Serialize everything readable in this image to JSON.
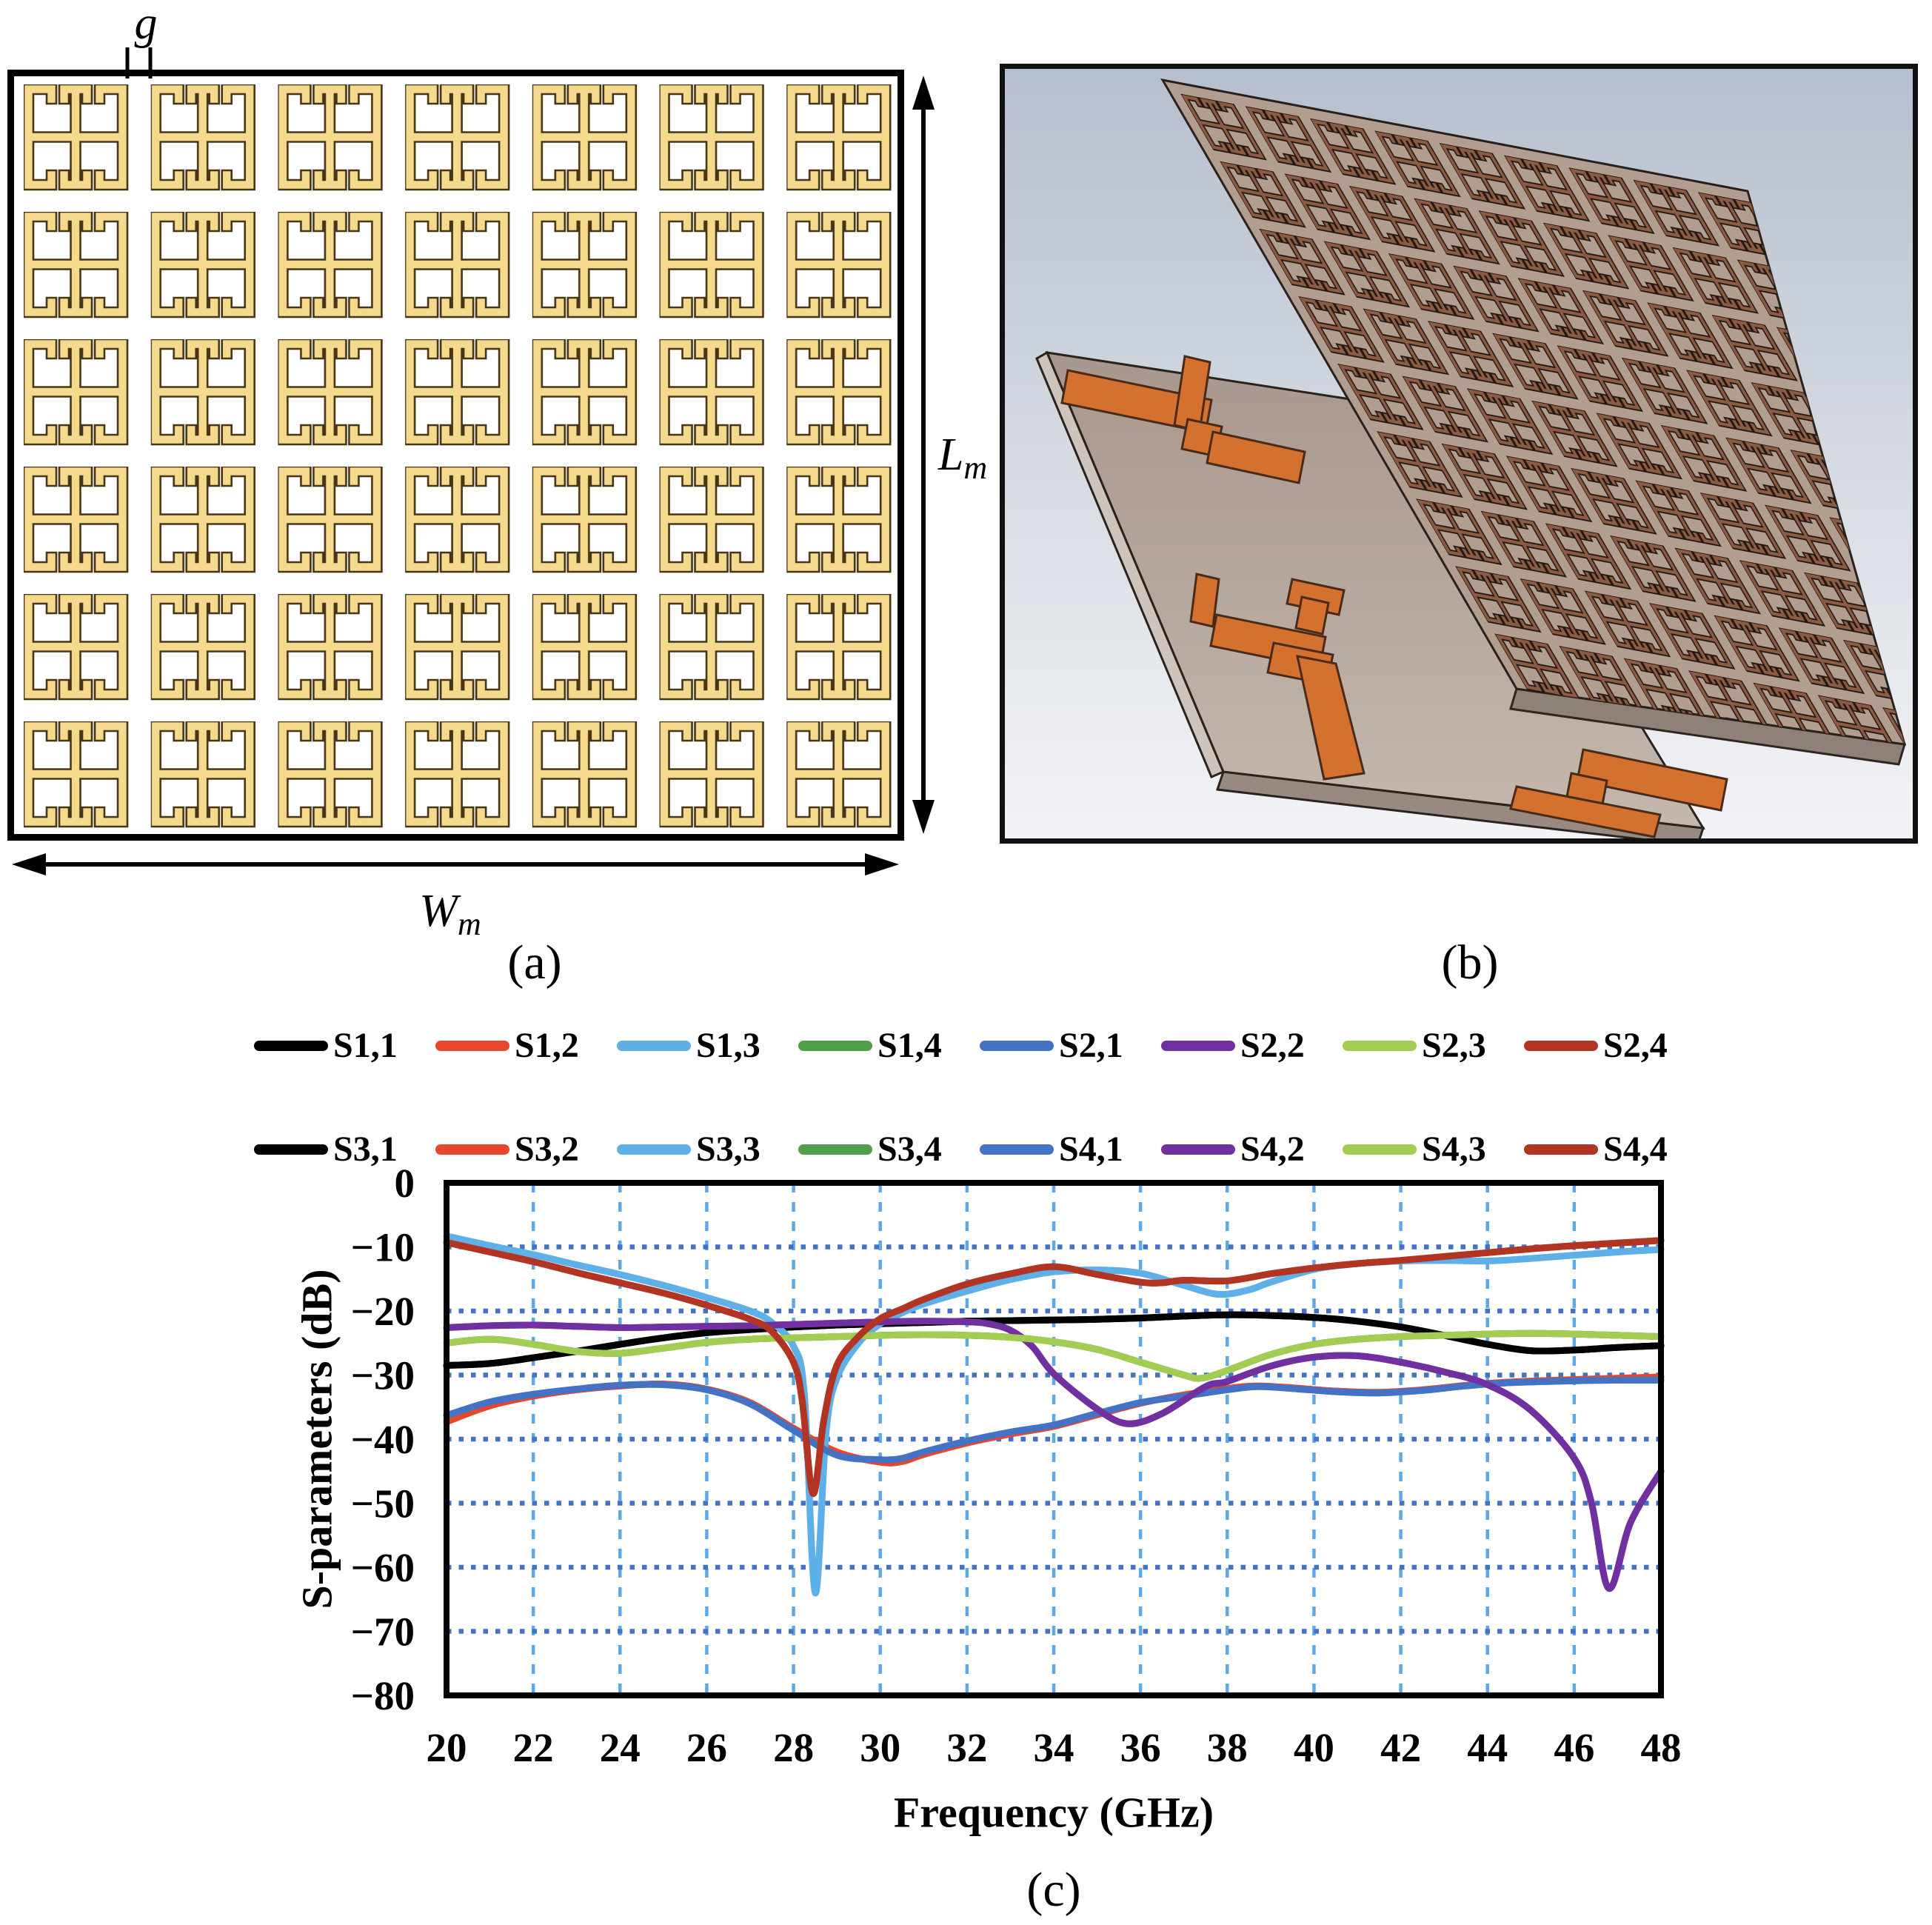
{
  "figure": {
    "panel_a": {
      "label": "(a)",
      "gap_label": "g",
      "width_label": "W",
      "width_sub": "m",
      "height_label": "L",
      "height_sub": "m",
      "grid": {
        "cols": 7,
        "rows": 6
      },
      "cell_fill": "#f5d98c",
      "cell_outline": "#463517",
      "border_color": "#000000",
      "background": "#ffffff"
    },
    "panel_b": {
      "label": "(b)",
      "description": "3D model: metasurface layer above feed-network board",
      "background_top": "#b6bfce",
      "background_bottom": "#eef0f4",
      "metasurface_board_color": "#b29d91",
      "metasurface_cell_color": "#8d5b44",
      "feed_board_color": "#b5a59a",
      "feed_trace_color": "#d4712f",
      "edge_color": "#958579",
      "border_color": "#111111"
    },
    "panel_c": {
      "label": "(c)"
    }
  },
  "chart_data": {
    "type": "line",
    "title": "",
    "xlabel": "Frequency (GHz)",
    "ylabel": "S-parameters (dB)",
    "xlim": [
      20,
      48
    ],
    "ylim": [
      -80,
      0
    ],
    "xticks": [
      20,
      22,
      24,
      26,
      28,
      30,
      32,
      34,
      36,
      38,
      40,
      42,
      44,
      46,
      48
    ],
    "yticks": [
      0,
      -10,
      -20,
      -30,
      -40,
      -50,
      -60,
      -70,
      -80
    ],
    "grid": {
      "vertical_style": "dashed",
      "horizontal_style": "dotted",
      "vertical_color": "#5fa8e8",
      "horizontal_color": "#4472c4"
    },
    "legend_position": "top",
    "axis_color": "#000000",
    "series": [
      {
        "name": "S1,1",
        "color": "#000000",
        "x": [
          20,
          21,
          22,
          23,
          24,
          25,
          26,
          27,
          28,
          29,
          30,
          31,
          32,
          33,
          34,
          35,
          36,
          37,
          38,
          39,
          40,
          41,
          42,
          43,
          44,
          45,
          46,
          47,
          48
        ],
        "y": [
          -28.5,
          -28.2,
          -27.3,
          -26.3,
          -25.2,
          -24.2,
          -23.4,
          -22.9,
          -22.5,
          -22.2,
          -22,
          -21.8,
          -21.6,
          -21.5,
          -21.4,
          -21.3,
          -21.1,
          -20.8,
          -20.6,
          -20.7,
          -21,
          -21.6,
          -22.5,
          -23.8,
          -25.2,
          -26.2,
          -26.1,
          -25.7,
          -25.4
        ]
      },
      {
        "name": "S1,2",
        "color": "#e8472b",
        "x": [
          20,
          21,
          22,
          23,
          24,
          25,
          26,
          27,
          28,
          29,
          30,
          30.5,
          31,
          32,
          33,
          34,
          35,
          36,
          37,
          38,
          38.7,
          39.5,
          40.5,
          41.5,
          42.5,
          43.5,
          44.5,
          46,
          47,
          48
        ],
        "y": [
          -37.3,
          -34.8,
          -33.3,
          -32.3,
          -31.7,
          -31.4,
          -32.2,
          -34.3,
          -38.3,
          -42,
          -43.6,
          -43.5,
          -42.4,
          -40.6,
          -39.2,
          -38,
          -36.2,
          -34.4,
          -33.1,
          -32.1,
          -31.7,
          -32,
          -32.5,
          -32.7,
          -32.3,
          -31.6,
          -31.1,
          -30.7,
          -30.5,
          -30.3
        ]
      },
      {
        "name": "S1,3",
        "color": "#5fb0e8",
        "x": [
          20,
          21,
          22,
          23,
          24,
          25,
          26,
          27,
          27.5,
          28,
          28.25,
          28.5,
          28.75,
          29,
          29.5,
          30,
          30.5,
          31,
          32,
          33,
          34,
          35,
          36,
          37,
          37.8,
          38.5,
          39,
          40,
          41,
          42,
          43,
          44,
          45,
          46,
          47,
          48
        ],
        "y": [
          -8.3,
          -9.8,
          -11.2,
          -12.8,
          -14.3,
          -16,
          -17.9,
          -20,
          -21.8,
          -25.5,
          -33,
          -64,
          -39,
          -30.5,
          -25,
          -22,
          -20.3,
          -18.9,
          -16.9,
          -15.1,
          -13.9,
          -13.6,
          -14.1,
          -16,
          -17.4,
          -16.7,
          -15.5,
          -13.5,
          -12.6,
          -12.2,
          -12.1,
          -12.2,
          -11.8,
          -11.3,
          -10.8,
          -10.4
        ]
      },
      {
        "name": "S1,4",
        "color": "#4f9e4a",
        "same_as": "S2,3"
      },
      {
        "name": "S2,1",
        "color": "#4472c4",
        "x": [
          20,
          21,
          22,
          23,
          24,
          25,
          26,
          27,
          28,
          29,
          30,
          30.5,
          31,
          32,
          33,
          34,
          35,
          36,
          37,
          38,
          38.7,
          39.5,
          40.5,
          41.5,
          42.5,
          43.5,
          44.5,
          46,
          47,
          48
        ],
        "y": [
          -36.3,
          -34.2,
          -33,
          -32.2,
          -31.6,
          -31.5,
          -32.3,
          -34.5,
          -38.6,
          -42.5,
          -43.2,
          -43,
          -42,
          -40.3,
          -38.9,
          -37.8,
          -36,
          -34.3,
          -33.3,
          -32.3,
          -31.8,
          -32.1,
          -32.6,
          -32.8,
          -32.4,
          -31.7,
          -31.2,
          -30.9,
          -30.8,
          -30.8
        ]
      },
      {
        "name": "S2,2",
        "color": "#7030a0",
        "x": [
          20,
          21,
          22,
          23,
          24,
          25,
          26,
          27,
          28,
          29,
          30,
          31,
          32,
          32.5,
          33,
          33.5,
          34,
          35,
          35.7,
          36.5,
          37.5,
          38,
          39,
          40,
          41,
          42,
          43,
          44,
          45,
          46,
          46.4,
          46.8,
          47.3,
          48
        ],
        "y": [
          -22.6,
          -22.3,
          -22.2,
          -22.4,
          -22.6,
          -22.5,
          -22.4,
          -22.3,
          -22.1,
          -21.9,
          -21.7,
          -21.6,
          -21.7,
          -22,
          -23,
          -25.5,
          -29.8,
          -35.3,
          -37.6,
          -36,
          -31.8,
          -31,
          -28.6,
          -27.2,
          -27,
          -28,
          -29.5,
          -31.5,
          -35.5,
          -43,
          -50,
          -63.3,
          -53,
          -45
        ]
      },
      {
        "name": "S2,3",
        "color": "#a3cc52",
        "x": [
          20,
          21,
          22,
          23,
          24,
          25,
          26,
          27,
          28,
          29,
          30,
          31,
          32,
          33,
          34,
          35,
          36,
          37,
          37.4,
          38,
          39,
          40,
          41,
          42,
          43,
          44,
          45,
          46,
          47,
          48
        ],
        "y": [
          -25,
          -24.4,
          -25.2,
          -26.3,
          -26.6,
          -25.8,
          -24.9,
          -24.4,
          -24.2,
          -24,
          -23.8,
          -23.7,
          -23.8,
          -24.1,
          -24.8,
          -26,
          -28,
          -30,
          -30.5,
          -29.3,
          -26.8,
          -25.2,
          -24.4,
          -24,
          -23.8,
          -23.6,
          -23.5,
          -23.6,
          -23.8,
          -24
        ]
      },
      {
        "name": "S2,4",
        "color": "#b23422",
        "x": [
          20,
          21,
          22,
          23,
          24,
          25,
          26,
          27,
          27.5,
          28,
          28.2,
          28.45,
          28.7,
          29,
          29.5,
          30,
          30.5,
          31,
          32,
          33,
          34,
          35,
          36,
          36.5,
          37,
          38,
          39,
          40,
          41,
          42,
          43,
          44,
          45,
          46,
          47,
          48
        ],
        "y": [
          -9.3,
          -10.8,
          -12.3,
          -14,
          -15.6,
          -17.2,
          -19.1,
          -21.3,
          -23.2,
          -28,
          -34,
          -48.5,
          -37,
          -28.5,
          -24,
          -21.2,
          -19.7,
          -18.2,
          -15.8,
          -14.2,
          -13.1,
          -14.3,
          -15.5,
          -15.6,
          -15.2,
          -15.3,
          -14.2,
          -13.3,
          -12.6,
          -12.1,
          -11.5,
          -10.9,
          -10.3,
          -9.8,
          -9.4,
          -9
        ]
      },
      {
        "name": "S3,1",
        "color": "#000000",
        "same_as": "S1,1"
      },
      {
        "name": "S3,2",
        "color": "#e8472b",
        "same_as": "S1,2"
      },
      {
        "name": "S3,3",
        "color": "#5fb0e8",
        "same_as": "S1,3"
      },
      {
        "name": "S3,4",
        "color": "#4f9e4a",
        "same_as": "S2,3"
      },
      {
        "name": "S4,1",
        "color": "#4472c4",
        "same_as": "S2,1"
      },
      {
        "name": "S4,2",
        "color": "#7030a0",
        "same_as": "S2,2"
      },
      {
        "name": "S4,3",
        "color": "#a3cc52",
        "same_as": "S2,3"
      },
      {
        "name": "S4,4",
        "color": "#b23422",
        "same_as": "S2,4"
      }
    ]
  },
  "layout_note": "values above are the only data shown in the figure"
}
